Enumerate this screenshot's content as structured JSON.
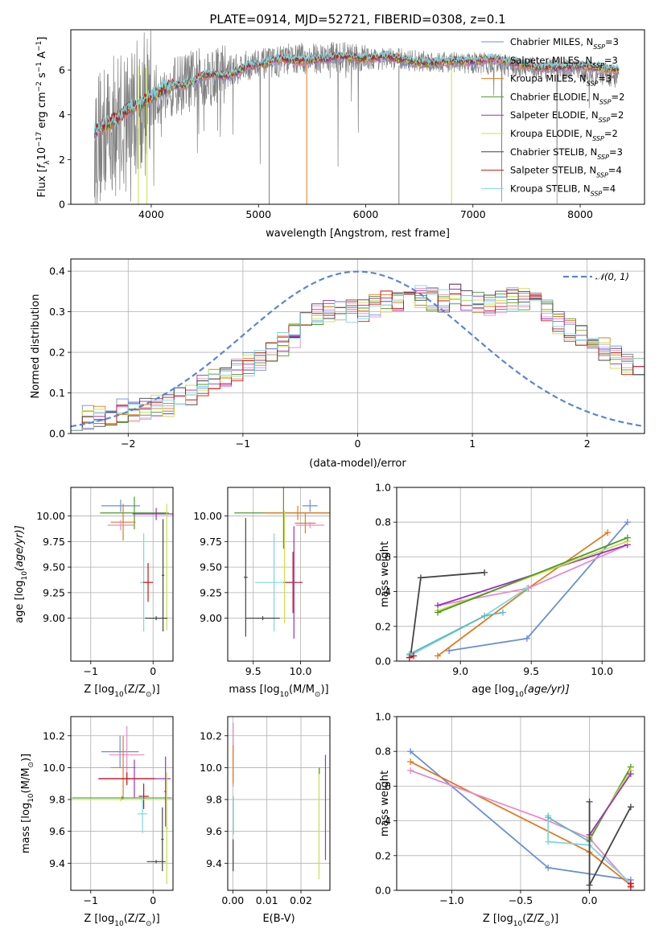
{
  "chart_data": [
    {
      "id": "spectrum",
      "type": "line",
      "title": "PLATE=0914, MJD=52721, FIBERID=0308, z=0.1",
      "xlabel": "wavelength [Angstrom, rest frame]",
      "ylabel_parts": [
        "Flux [",
        "f",
        "λ",
        "10",
        "−17",
        " erg cm",
        "−2",
        " s",
        "−1",
        " A",
        "−1",
        "]"
      ],
      "xlim": [
        3250,
        8600
      ],
      "ylim": [
        0,
        7.8
      ],
      "xticks": [
        4000,
        5000,
        6000,
        7000,
        8000
      ],
      "yticks": [
        0,
        2,
        4,
        6
      ],
      "data_series": {
        "x": [
          3500,
          3700,
          3900,
          4100,
          4300,
          4500,
          4700,
          4900,
          5100,
          5300,
          5500,
          5700,
          5900,
          6100,
          6300,
          6500,
          6700,
          6900,
          7100,
          7300,
          7500,
          7700,
          7900,
          8100,
          8300
        ],
        "y": [
          2.9,
          3.8,
          4.5,
          5.0,
          5.4,
          5.7,
          5.9,
          6.2,
          6.3,
          6.5,
          6.5,
          6.6,
          6.5,
          6.5,
          6.5,
          6.4,
          6.4,
          6.3,
          6.3,
          6.2,
          6.1,
          6.1,
          6.0,
          5.8,
          5.6
        ]
      },
      "model_series": {
        "x": [
          3480,
          3600,
          3700,
          3800,
          3900,
          4000,
          4100,
          4200,
          4300,
          4400,
          4500,
          4600,
          4700,
          4800,
          4900,
          5000,
          5200,
          5400,
          5600,
          5800,
          6000,
          6200,
          6400,
          6600,
          6800,
          7000,
          7200,
          7400,
          7600,
          7800,
          8000,
          8200,
          8350
        ],
        "y": [
          3.3,
          3.6,
          3.9,
          4.3,
          4.5,
          4.8,
          5.1,
          5.3,
          5.3,
          5.5,
          5.8,
          5.8,
          5.7,
          5.9,
          6.2,
          6.2,
          6.5,
          6.4,
          6.5,
          6.6,
          6.5,
          6.6,
          6.4,
          6.3,
          6.4,
          6.4,
          6.5,
          6.3,
          6.1,
          6.1,
          6.2,
          6.1,
          6.0
        ]
      },
      "legend_position": "right",
      "legend": [
        {
          "imf": "Chabrier",
          "lib": "MILES",
          "n": "3",
          "color": "#6a8fd8"
        },
        {
          "imf": "Salpeter",
          "lib": "MILES",
          "n": "3",
          "color": "#e88ac8"
        },
        {
          "imf": "Kroupa",
          "lib": "MILES",
          "n": "3",
          "color": "#e07a1f"
        },
        {
          "imf": "Chabrier",
          "lib": "ELODIE",
          "n": "2",
          "color": "#4c9a2a"
        },
        {
          "imf": "Salpeter",
          "lib": "ELODIE",
          "n": "2",
          "color": "#9b2fc4"
        },
        {
          "imf": "Kroupa",
          "lib": "ELODIE",
          "n": "2",
          "color": "#c8e04a"
        },
        {
          "imf": "Chabrier",
          "lib": "STELIB",
          "n": "3",
          "color": "#444444"
        },
        {
          "imf": "Salpeter",
          "lib": "STELIB",
          "n": "4",
          "color": "#c81414"
        },
        {
          "imf": "Kroupa",
          "lib": "STELIB",
          "n": "4",
          "color": "#7dd8e0"
        }
      ],
      "legend_text": {
        "nssp": "N",
        "nssp_sub": "SSP",
        "eq": "="
      }
    },
    {
      "id": "residuals",
      "type": "histogram",
      "xlabel": "(data-model)/error",
      "ylabel": "Normed distribution",
      "xlim": [
        -2.5,
        2.5
      ],
      "ylim": [
        0,
        0.43
      ],
      "xticks": [
        -2,
        -1,
        0,
        1,
        2
      ],
      "xtick_labels": [
        "−2",
        "−1",
        "0",
        "1",
        "2"
      ],
      "yticks": [
        0.0,
        0.1,
        0.2,
        0.3,
        0.4
      ],
      "ytick_labels": [
        "0.0",
        "0.1",
        "0.2",
        "0.3",
        "0.4"
      ],
      "bin_edges_start": -2.5,
      "bin_width": 0.1,
      "base_values": [
        0.035,
        0.04,
        0.045,
        0.05,
        0.055,
        0.058,
        0.06,
        0.065,
        0.07,
        0.085,
        0.1,
        0.12,
        0.13,
        0.145,
        0.155,
        0.17,
        0.185,
        0.2,
        0.22,
        0.24,
        0.27,
        0.29,
        0.3,
        0.3,
        0.3,
        0.305,
        0.315,
        0.325,
        0.33,
        0.345,
        0.335,
        0.33,
        0.325,
        0.34,
        0.33,
        0.325,
        0.32,
        0.325,
        0.33,
        0.33,
        0.32,
        0.3,
        0.275,
        0.255,
        0.24,
        0.22,
        0.21,
        0.19,
        0.175,
        0.16,
        0.145,
        0.13,
        0.12,
        0.1,
        0.095,
        0.085,
        0.08,
        0.075,
        0.07,
        0.065
      ],
      "normal_curve": {
        "label": "𝒩(0, 1)",
        "color": "#5b84d8",
        "legend_position": "top-right"
      }
    },
    {
      "id": "age_vs_Z",
      "type": "errorbar",
      "xlabel_parts": [
        "Z [log",
        "10",
        "(Z/Z",
        "⊙",
        ")]"
      ],
      "ylabel_parts": [
        "age  [log",
        "10",
        "(age/yr)]"
      ],
      "xlim": [
        -1.32,
        0.32
      ],
      "ylim": [
        8.58,
        10.28
      ],
      "xticks": [
        -1,
        0
      ],
      "xtick_labels": [
        "−1",
        "0"
      ],
      "yticks": [
        9.0,
        9.25,
        9.5,
        9.75,
        10.0
      ],
      "ytick_labels": [
        "9.00",
        "9.25",
        "9.50",
        "9.75",
        "10.00"
      ],
      "points": [
        {
          "x": -0.52,
          "y": 10.1,
          "xerr": 0.31,
          "yerr": 0.06,
          "color": "#6a8fd8"
        },
        {
          "x": -0.3,
          "y": 10.03,
          "xerr": 0.55,
          "yerr": 0.16,
          "color": "#4c9a2a"
        },
        {
          "x": 0.05,
          "y": 10.02,
          "xerr": 0.38,
          "yerr": 0.06,
          "color": "#9b2fc4"
        },
        {
          "x": -0.48,
          "y": 9.94,
          "xerr": 0.2,
          "yerr": 0.18,
          "color": "#e07a1f"
        },
        {
          "x": -0.52,
          "y": 9.91,
          "xerr": 0.21,
          "yerr": 0.05,
          "color": "#e88ac8"
        },
        {
          "x": -0.15,
          "y": 9.35,
          "xerr": 0.06,
          "yerr": 0.48,
          "color": "#7dd8e0"
        },
        {
          "x": -0.08,
          "y": 9.35,
          "xerr": 0.08,
          "yerr": 0.19,
          "color": "#c81414"
        },
        {
          "x": 0.22,
          "y": 9.5,
          "xerr": 0.03,
          "yerr": 0.62,
          "color": "#c8e04a"
        },
        {
          "x": 0.16,
          "y": 9.42,
          "xerr": 0.02,
          "yerr": 0.55,
          "color": "#444444"
        },
        {
          "x": 0.05,
          "y": 9.0,
          "xerr": 0.18,
          "yerr": 0.02,
          "color": "#444444"
        }
      ]
    },
    {
      "id": "age_vs_mass",
      "type": "errorbar",
      "xlabel_parts": [
        "mass [log",
        "10",
        "(M/M",
        "⊙",
        ")]"
      ],
      "xlim": [
        9.23,
        10.31
      ],
      "ylim": [
        8.58,
        10.28
      ],
      "xticks": [
        9.5,
        10.0
      ],
      "xtick_labels": [
        "9.5",
        "10.0"
      ],
      "yticks": [
        9.0,
        9.25,
        9.5,
        9.75,
        10.0
      ],
      "ytick_labels": [
        "9.00",
        "9.25",
        "9.50",
        "9.75",
        "10.00"
      ],
      "points": [
        {
          "x": 10.1,
          "y": 10.1,
          "xerr": 0.08,
          "yerr": 0.06,
          "color": "#6a8fd8"
        },
        {
          "x": 9.82,
          "y": 10.03,
          "xerr": 0.52,
          "yerr": 0.35,
          "color": "#4c9a2a"
        },
        {
          "x": 9.97,
          "y": 10.03,
          "xerr": 0.36,
          "yerr": 0.07,
          "color": "#e07a1f"
        },
        {
          "x": 10.05,
          "y": 9.93,
          "xerr": 0.11,
          "yerr": 0.1,
          "color": "#e07a1f"
        },
        {
          "x": 10.1,
          "y": 9.91,
          "xerr": 0.15,
          "yerr": 0.03,
          "color": "#e88ac8"
        },
        {
          "x": 9.72,
          "y": 9.35,
          "xerr": 0.2,
          "yerr": 0.48,
          "color": "#7dd8e0"
        },
        {
          "x": 9.92,
          "y": 9.35,
          "xerr": 0.1,
          "yerr": 0.3,
          "color": "#c81414"
        },
        {
          "x": 9.93,
          "y": 9.35,
          "xerr": 0.02,
          "yerr": 0.55,
          "color": "#9b2fc4"
        },
        {
          "x": 9.83,
          "y": 9.5,
          "xerr": 0.03,
          "yerr": 0.55,
          "color": "#c8e04a"
        },
        {
          "x": 9.42,
          "y": 9.4,
          "xerr": 0.02,
          "yerr": 0.58,
          "color": "#444444"
        },
        {
          "x": 9.6,
          "y": 9.0,
          "xerr": 0.18,
          "yerr": 0.02,
          "color": "#444444"
        }
      ]
    },
    {
      "id": "weight_vs_age",
      "type": "line",
      "xlabel_parts": [
        "age  [log",
        "10",
        "(age/yr)]"
      ],
      "ylabel": "mass weight",
      "xlim": [
        8.55,
        10.3
      ],
      "ylim": [
        0,
        1.0
      ],
      "xticks": [
        9.0,
        9.5,
        10.0
      ],
      "xtick_labels": [
        "9.0",
        "9.5",
        "10.0"
      ],
      "yticks": [
        0,
        0.2,
        0.4,
        0.6,
        0.8,
        1.0
      ],
      "ytick_labels": [
        "0.0",
        "0.2",
        "0.4",
        "0.6",
        "0.8",
        "1.0"
      ],
      "series": [
        {
          "color": "#444444",
          "x": [
            8.65,
            8.72,
            9.17
          ],
          "y": [
            0.04,
            0.48,
            0.51
          ]
        },
        {
          "color": "#6a8fd8",
          "x": [
            8.92,
            9.47,
            10.18
          ],
          "y": [
            0.06,
            0.13,
            0.8
          ]
        },
        {
          "color": "#e07a1f",
          "x": [
            8.84,
            9.48,
            10.04
          ],
          "y": [
            0.03,
            0.42,
            0.74
          ]
        },
        {
          "color": "#e88ac8",
          "x": [
            8.84,
            9.48,
            10.18
          ],
          "y": [
            0.32,
            0.42,
            0.67
          ]
        },
        {
          "color": "#9b2fc4",
          "x": [
            8.84,
            10.18
          ],
          "y": [
            0.32,
            0.67
          ]
        },
        {
          "color": "#c8e04a",
          "x": [
            8.84,
            10.18
          ],
          "y": [
            0.29,
            0.69
          ]
        },
        {
          "color": "#4c9a2a",
          "x": [
            8.84,
            10.18
          ],
          "y": [
            0.28,
            0.71
          ]
        },
        {
          "color": "#7dd8e0",
          "x": [
            8.64,
            9.17,
            9.47
          ],
          "y": [
            0.03,
            0.26,
            0.42
          ]
        },
        {
          "color": "#5fb8c0",
          "x": [
            8.64,
            9.17,
            9.3
          ],
          "y": [
            0.04,
            0.26,
            0.28
          ]
        },
        {
          "color": "#c81414",
          "x": [
            8.64,
            8.67
          ],
          "y": [
            0.02,
            0.03
          ]
        }
      ]
    },
    {
      "id": "mass_vs_Z",
      "type": "errorbar",
      "xlabel_parts": [
        "Z [log",
        "10",
        "(Z/Z",
        "⊙",
        ")]"
      ],
      "ylabel_parts": [
        "mass [log",
        "10",
        "(M/M",
        "⊙",
        ")]"
      ],
      "xlim": [
        -1.32,
        0.32
      ],
      "ylim": [
        9.23,
        10.32
      ],
      "xticks": [
        -1,
        0
      ],
      "xtick_labels": [
        "−1",
        "0"
      ],
      "yticks": [
        9.4,
        9.6,
        9.8,
        10.0,
        10.2
      ],
      "ytick_labels": [
        "9.4",
        "9.6",
        "9.8",
        "10.0",
        "10.2"
      ],
      "points": [
        {
          "x": -0.53,
          "y": 10.1,
          "xerr": 0.3,
          "yerr": 0.1,
          "color": "#6a8fd8"
        },
        {
          "x": -0.42,
          "y": 10.08,
          "xerr": 0.28,
          "yerr": 0.18,
          "color": "#e88ac8"
        },
        {
          "x": -0.48,
          "y": 10.0,
          "xerr": 0.2,
          "yerr": 0.2,
          "color": "#e07a1f"
        },
        {
          "x": -0.3,
          "y": 9.93,
          "xerr": 0.58,
          "yerr": 0.12,
          "color": "#9b2fc4"
        },
        {
          "x": -0.42,
          "y": 9.93,
          "xerr": 0.45,
          "yerr": 0.04,
          "color": "#c81414"
        },
        {
          "x": -0.15,
          "y": 9.82,
          "xerr": 0.08,
          "yerr": 0.08,
          "color": "#c81414"
        },
        {
          "x": -0.5,
          "y": 9.81,
          "xerr": 0.8,
          "yerr": 0.01,
          "color": "#4c9a2a"
        },
        {
          "x": -0.52,
          "y": 9.8,
          "xerr": 0.77,
          "yerr": 0.01,
          "color": "#c8e04a"
        },
        {
          "x": -0.17,
          "y": 9.71,
          "xerr": 0.08,
          "yerr": 0.12,
          "color": "#7dd8e0"
        },
        {
          "x": 0.2,
          "y": 9.85,
          "xerr": 0.02,
          "yerr": 0.22,
          "color": "#9b2fc4"
        },
        {
          "x": 0.22,
          "y": 9.62,
          "xerr": 0.02,
          "yerr": 0.35,
          "color": "#c8e04a"
        },
        {
          "x": 0.15,
          "y": 9.55,
          "xerr": 0.02,
          "yerr": 0.2,
          "color": "#444444"
        },
        {
          "x": 0.05,
          "y": 9.41,
          "xerr": 0.15,
          "yerr": 0.01,
          "color": "#444444"
        }
      ]
    },
    {
      "id": "mass_vs_EBV",
      "type": "errorbar",
      "xlabel": "E(B-V)",
      "xlim": [
        -0.0015,
        0.0285
      ],
      "ylim": [
        9.23,
        10.32
      ],
      "xticks": [
        0.0,
        0.01,
        0.02
      ],
      "xtick_labels": [
        "0.00",
        "0.01",
        "0.02"
      ],
      "yticks": [
        9.4,
        9.6,
        9.8,
        10.0,
        10.2
      ],
      "ytick_labels": [
        "9.4",
        "9.6",
        "9.8",
        "10.0",
        "10.2"
      ],
      "points": [
        {
          "x": 0.0001,
          "y": 10.08,
          "xerr": 0,
          "yerr": 0.2,
          "color": "#e88ac8"
        },
        {
          "x": 0.0001,
          "y": 10.02,
          "xerr": 0,
          "yerr": 0.12,
          "color": "#e07a1f"
        },
        {
          "x": 0.0002,
          "y": 9.7,
          "xerr": 0,
          "yerr": 0.12,
          "color": "#7dd8e0"
        },
        {
          "x": 0.0001,
          "y": 9.45,
          "xerr": 0,
          "yerr": 0.1,
          "color": "#444444"
        },
        {
          "x": 0.0253,
          "y": 9.65,
          "xerr": 0,
          "yerr": 0.35,
          "color": "#c8e04a"
        },
        {
          "x": 0.0254,
          "y": 9.98,
          "xerr": 0,
          "yerr": 0.02,
          "color": "#4c9a2a"
        },
        {
          "x": 0.0272,
          "y": 9.75,
          "xerr": 0,
          "yerr": 0.33,
          "color": "#9b2fc4"
        }
      ]
    },
    {
      "id": "weight_vs_Z",
      "type": "line",
      "xlabel_parts": [
        "Z [log",
        "10",
        "(Z/Z",
        "⊙",
        ")]"
      ],
      "ylabel": "mass weight",
      "xlim": [
        -1.4,
        0.4
      ],
      "ylim": [
        0,
        1.0
      ],
      "xticks": [
        -1.0,
        -0.5,
        0.0
      ],
      "xtick_labels": [
        "−1.0",
        "−0.5",
        "0.0"
      ],
      "yticks": [
        0,
        0.2,
        0.4,
        0.6,
        0.8,
        1.0
      ],
      "ytick_labels": [
        "0.0",
        "0.2",
        "0.4",
        "0.6",
        "0.8",
        "1.0"
      ],
      "series": [
        {
          "color": "#6a8fd8",
          "x": [
            -1.3,
            -0.3,
            0.3
          ],
          "y": [
            0.8,
            0.13,
            0.06
          ]
        },
        {
          "color": "#e07a1f",
          "x": [
            -1.3,
            0.0,
            0.3
          ],
          "y": [
            0.74,
            0.22,
            0.03
          ]
        },
        {
          "color": "#e88ac8",
          "x": [
            -1.3,
            -0.3,
            0.0,
            0.3
          ],
          "y": [
            0.69,
            0.4,
            0.3,
            0.03
          ]
        },
        {
          "color": "#7dd8e0",
          "x": [
            -0.3,
            -0.3,
            0.0,
            0.3
          ],
          "y": [
            0.43,
            0.28,
            0.26,
            0.04
          ]
        },
        {
          "color": "#5fb8c0",
          "x": [
            -0.3,
            0.0
          ],
          "y": [
            0.42,
            0.28
          ]
        },
        {
          "color": "#4c9a2a",
          "x": [
            0.0,
            0.3
          ],
          "y": [
            0.29,
            0.71
          ]
        },
        {
          "color": "#c8e04a",
          "x": [
            0.0,
            0.3
          ],
          "y": [
            0.31,
            0.69
          ]
        },
        {
          "color": "#9b2fc4",
          "x": [
            0.0,
            0.3
          ],
          "y": [
            0.32,
            0.67
          ]
        },
        {
          "color": "#444444",
          "x": [
            0.0,
            0.0
          ],
          "y": [
            0.0,
            0.51
          ]
        },
        {
          "color": "#444444",
          "x": [
            0.0,
            0.3
          ],
          "y": [
            0.03,
            0.48
          ]
        },
        {
          "color": "#c81414",
          "x": [
            0.3,
            0.3
          ],
          "y": [
            0.02,
            0.04
          ]
        }
      ]
    }
  ]
}
